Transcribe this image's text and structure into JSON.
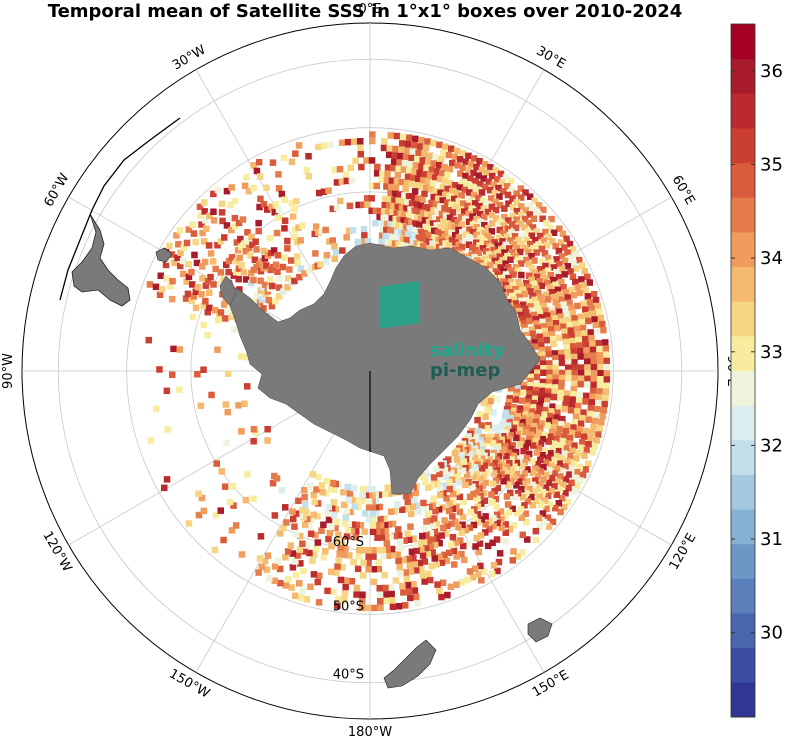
{
  "title": "Temporal mean of Satellite SSS in 1°x1° boxes over 2010-2024",
  "map": {
    "projection": "south-polar-stereographic",
    "center_latitude": -90,
    "longitude_labels": [
      {
        "lon": 0,
        "text": "0°E"
      },
      {
        "lon": 30,
        "text": "30°E"
      },
      {
        "lon": 60,
        "text": "60°E"
      },
      {
        "lon": 90,
        "text": "90°E"
      },
      {
        "lon": 120,
        "text": "120°E"
      },
      {
        "lon": 150,
        "text": "150°E"
      },
      {
        "lon": 180,
        "text": "180°W"
      },
      {
        "lon": -150,
        "text": "150°W"
      },
      {
        "lon": -120,
        "text": "120°W"
      },
      {
        "lon": -90,
        "text": "90°W"
      },
      {
        "lon": -60,
        "text": "60°W"
      },
      {
        "lon": -30,
        "text": "30°W"
      }
    ],
    "latitude_labels": [
      {
        "lat": -60,
        "text": "60°S"
      },
      {
        "lat": -50,
        "text": "50°S"
      },
      {
        "lat": -40,
        "text": "40°S"
      }
    ],
    "land_color": "#7a7a7a",
    "grid_color": "#c8c8c8",
    "logo": {
      "line1": "salinity",
      "line2": "pi-mep",
      "color1": "#1fa88c",
      "color2": "#1d5e54"
    }
  },
  "colorbar": {
    "colormap": "RdYlBu_r",
    "min": 29.1,
    "max": 36.5,
    "ticks": [
      30,
      31,
      32,
      33,
      34,
      35,
      36
    ],
    "tick_labels": [
      "30",
      "31",
      "32",
      "33",
      "34",
      "35",
      "36"
    ],
    "colors": [
      "#313695",
      "#3b4ca2",
      "#4865ae",
      "#5a7fbb",
      "#6b97c6",
      "#85b1d4",
      "#a4c9e0",
      "#c3dfec",
      "#dcedf0",
      "#eef4dc",
      "#f8ec9e",
      "#f7d683",
      "#f4ba6e",
      "#f09c5c",
      "#e67c4b",
      "#da5c3d",
      "#cb3f33",
      "#bc2a2e",
      "#a81b2a",
      "#a50026"
    ]
  }
}
